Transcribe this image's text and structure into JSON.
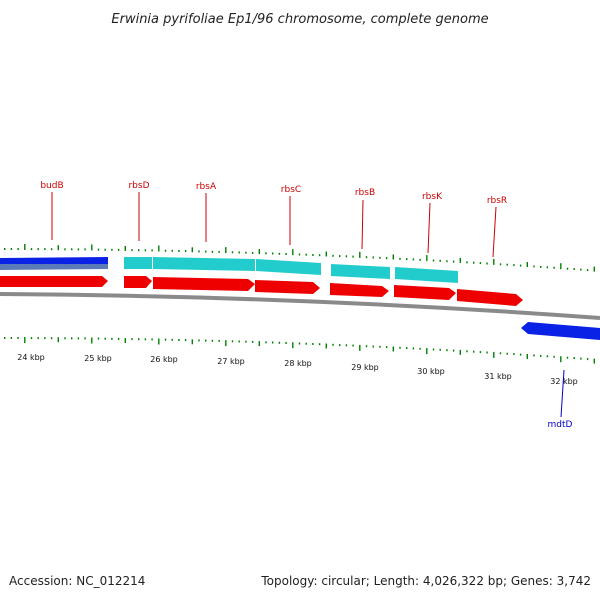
{
  "title": "Erwinia pyrifoliae Ep1/96 chromosome, complete genome",
  "footer": {
    "accession": "Accession: NC_012214",
    "summary": "Topology: circular; Length: 4,026,322 bp; Genes: 3,742"
  },
  "colors": {
    "forward_cds": "#ff0000",
    "reverse_cds": "#0000ff",
    "rrna": "#00cccc",
    "backbone": "#888888",
    "tick": "#008000",
    "label_forward": "#cc0000",
    "label_reverse": "#0000cc"
  },
  "kbp_labels": [
    "24 kbp",
    "25 kbp",
    "26 kbp",
    "27 kbp",
    "28 kbp",
    "29 kbp",
    "30 kbp",
    "31 kbp",
    "32 kbp"
  ],
  "genes": [
    {
      "name": "budB",
      "strand": "forward"
    },
    {
      "name": "rbsD",
      "strand": "forward"
    },
    {
      "name": "rbsA",
      "strand": "forward"
    },
    {
      "name": "rbsC",
      "strand": "forward"
    },
    {
      "name": "rbsB",
      "strand": "forward"
    },
    {
      "name": "rbsK",
      "strand": "forward"
    },
    {
      "name": "rbsR",
      "strand": "forward"
    },
    {
      "name": "mdtD",
      "strand": "reverse"
    }
  ]
}
